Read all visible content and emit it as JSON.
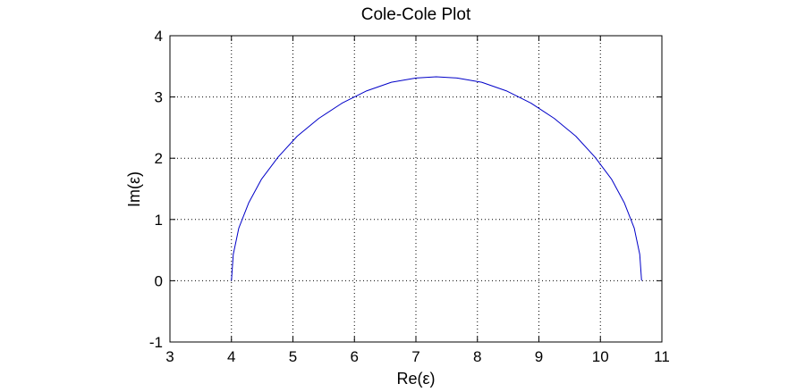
{
  "chart_data": {
    "type": "line",
    "title": "Cole-Cole Plot",
    "xlabel": "Re(ε)",
    "ylabel": "Im(ε)",
    "xlim": [
      3,
      11
    ],
    "ylim": [
      -1,
      4
    ],
    "xticks": [
      3,
      4,
      5,
      6,
      7,
      8,
      9,
      10,
      11
    ],
    "yticks": [
      -1,
      0,
      1,
      2,
      3,
      4
    ],
    "grid": true,
    "legend": "none",
    "series": [
      {
        "color": "#0000c8",
        "x": [
          4.0,
          4.03,
          4.12,
          4.28,
          4.49,
          4.76,
          5.07,
          5.42,
          5.8,
          6.2,
          6.6,
          7.0,
          7.33,
          7.67,
          8.07,
          8.47,
          8.87,
          9.25,
          9.6,
          9.91,
          10.18,
          10.39,
          10.55,
          10.64,
          10.67
        ],
        "y": [
          0.0,
          0.43,
          0.86,
          1.27,
          1.66,
          2.02,
          2.36,
          2.65,
          2.9,
          3.1,
          3.24,
          3.31,
          3.33,
          3.31,
          3.24,
          3.1,
          2.9,
          2.65,
          2.36,
          2.02,
          1.66,
          1.27,
          0.86,
          0.43,
          0.0
        ]
      }
    ]
  }
}
